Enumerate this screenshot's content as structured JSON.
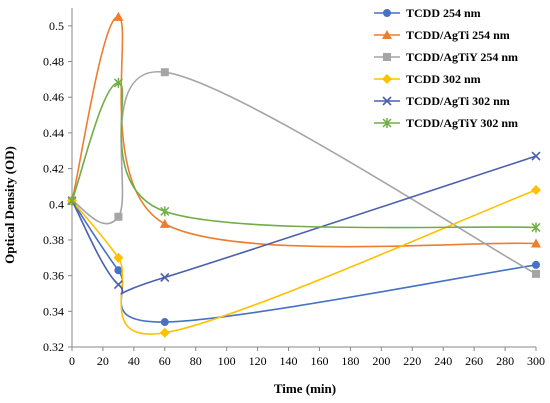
{
  "chart_data": {
    "type": "line",
    "xlabel": "Time (min)",
    "ylabel": "Optical Density (OD)",
    "xlim": [
      0,
      300
    ],
    "ylim": [
      0.32,
      0.51
    ],
    "xticks": [
      0,
      20,
      40,
      60,
      80,
      100,
      120,
      140,
      160,
      180,
      200,
      220,
      240,
      260,
      280,
      300
    ],
    "yticks": [
      0.32,
      0.34,
      0.36,
      0.38,
      0.4,
      0.42,
      0.44,
      0.46,
      0.48,
      0.5
    ],
    "ytick_labels": [
      "0.32",
      "0.34",
      "0.36",
      "0.38",
      "0.4",
      "0.42",
      "0.44",
      "0.46",
      "0.48",
      "0.5"
    ],
    "x": [
      0,
      30,
      60,
      300
    ],
    "legend_position": "top-right",
    "grid": false,
    "smooth": true,
    "series": [
      {
        "name": "TCDD 254 nm",
        "values": [
          0.402,
          0.363,
          0.334,
          0.366
        ],
        "color": "#4472C4",
        "marker": "circle"
      },
      {
        "name": "TCDD/AgTi 254 nm",
        "values": [
          0.402,
          0.505,
          0.389,
          0.378
        ],
        "color": "#ED7D31",
        "marker": "triangle"
      },
      {
        "name": "TCDD/AgTiY 254 nm",
        "values": [
          0.402,
          0.393,
          0.474,
          0.361
        ],
        "color": "#A5A5A5",
        "marker": "square"
      },
      {
        "name": "TCDD 302 nm",
        "values": [
          0.402,
          0.37,
          0.328,
          0.408
        ],
        "color": "#FFC000",
        "marker": "diamond"
      },
      {
        "name": "TCDD/AgTi 302 nm",
        "values": [
          0.402,
          0.355,
          0.359,
          0.427
        ],
        "color": "#4A5FB0",
        "marker": "x"
      },
      {
        "name": "TCDD/AgTiY 302 nm",
        "values": [
          0.402,
          0.468,
          0.396,
          0.387
        ],
        "color": "#70AD47",
        "marker": "star"
      }
    ]
  }
}
